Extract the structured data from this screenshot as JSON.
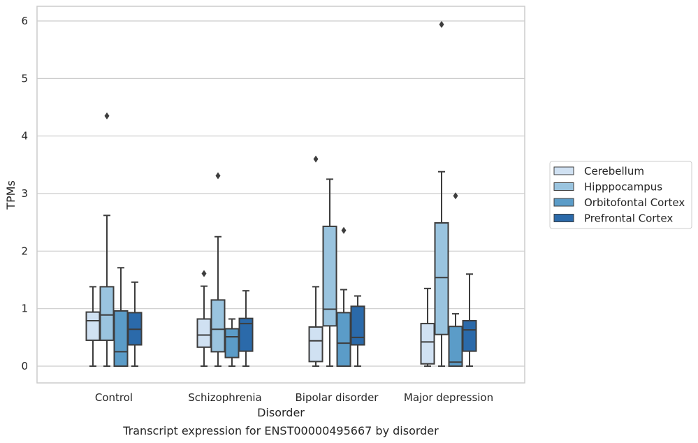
{
  "chart_data": {
    "type": "box",
    "caption": "Transcript expression for ENST00000495667 by disorder",
    "xlabel": "Disorder",
    "ylabel": "TPMs",
    "ylim": [
      -0.29,
      6.25
    ],
    "yticks": [
      0,
      1,
      2,
      3,
      4,
      5,
      6
    ],
    "grid": true,
    "legend_position": "right",
    "categories": [
      "Control",
      "Schizophrenia",
      "Bipolar disorder",
      "Major depression"
    ],
    "series": [
      {
        "name": "Cerebellum",
        "color": "#d0e1f2",
        "boxes": [
          {
            "whisker_low": 0.0,
            "q1": 0.45,
            "median": 0.79,
            "q3": 0.94,
            "whisker_high": 1.38,
            "outliers": []
          },
          {
            "whisker_low": 0.0,
            "q1": 0.33,
            "median": 0.54,
            "q3": 0.82,
            "whisker_high": 1.39,
            "outliers": [
              1.61
            ]
          },
          {
            "whisker_low": 0.0,
            "q1": 0.08,
            "median": 0.44,
            "q3": 0.68,
            "whisker_high": 1.38,
            "outliers": [
              3.6
            ]
          },
          {
            "whisker_low": 0.0,
            "q1": 0.04,
            "median": 0.42,
            "q3": 0.74,
            "whisker_high": 1.35,
            "outliers": []
          }
        ]
      },
      {
        "name": "Hipppocampus",
        "color": "#9ac4df",
        "boxes": [
          {
            "whisker_low": 0.0,
            "q1": 0.45,
            "median": 0.89,
            "q3": 1.38,
            "whisker_high": 2.62,
            "outliers": [
              4.35
            ]
          },
          {
            "whisker_low": 0.0,
            "q1": 0.25,
            "median": 0.64,
            "q3": 1.15,
            "whisker_high": 2.25,
            "outliers": [
              3.31
            ]
          },
          {
            "whisker_low": 0.0,
            "q1": 0.7,
            "median": 0.99,
            "q3": 2.43,
            "whisker_high": 3.25,
            "outliers": []
          },
          {
            "whisker_low": 0.0,
            "q1": 0.55,
            "median": 1.54,
            "q3": 2.49,
            "whisker_high": 3.38,
            "outliers": [
              5.94
            ]
          }
        ]
      },
      {
        "name": "Orbitofontal Cortex",
        "color": "#5b9cc8",
        "boxes": [
          {
            "whisker_low": 0.0,
            "q1": 0.0,
            "median": 0.25,
            "q3": 0.96,
            "whisker_high": 1.71,
            "outliers": []
          },
          {
            "whisker_low": 0.0,
            "q1": 0.15,
            "median": 0.51,
            "q3": 0.65,
            "whisker_high": 0.82,
            "outliers": []
          },
          {
            "whisker_low": 0.0,
            "q1": 0.0,
            "median": 0.4,
            "q3": 0.93,
            "whisker_high": 1.33,
            "outliers": [
              2.36
            ]
          },
          {
            "whisker_low": 0.0,
            "q1": 0.0,
            "median": 0.07,
            "q3": 0.69,
            "whisker_high": 0.91,
            "outliers": [
              2.96
            ]
          }
        ]
      },
      {
        "name": "Prefrontal Cortex",
        "color": "#2b6aaa",
        "boxes": [
          {
            "whisker_low": 0.0,
            "q1": 0.37,
            "median": 0.64,
            "q3": 0.93,
            "whisker_high": 1.46,
            "outliers": []
          },
          {
            "whisker_low": 0.0,
            "q1": 0.26,
            "median": 0.74,
            "q3": 0.83,
            "whisker_high": 1.31,
            "outliers": []
          },
          {
            "whisker_low": 0.0,
            "q1": 0.37,
            "median": 0.5,
            "q3": 1.04,
            "whisker_high": 1.22,
            "outliers": []
          },
          {
            "whisker_low": 0.0,
            "q1": 0.26,
            "median": 0.63,
            "q3": 0.79,
            "whisker_high": 1.6,
            "outliers": []
          }
        ]
      }
    ]
  }
}
